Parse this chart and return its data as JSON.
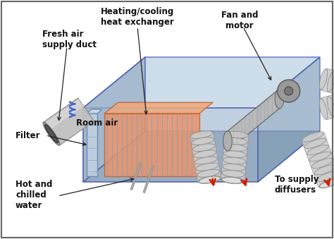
{
  "bg_color": "#f0f0f0",
  "border_color": "#888888",
  "labels": {
    "fresh_air": "Fresh air\nsupply duct",
    "heat_exchanger": "Heating/cooling\nheat exchanger",
    "fan_motor": "Fan and\nmotor",
    "room_air": "Room air",
    "filter": "Filter",
    "hot_chilled": "Hot and\nchilled\nwater",
    "supply_diffusers": "To supply\ndiffusers"
  },
  "housing_color_front": "#8faac8",
  "housing_color_top": "#b8cfe0",
  "housing_color_right": "#7a9ab8",
  "housing_edge": "#4455aa",
  "hx_color": "#e8956e",
  "hx_edge": "#c06030",
  "fan_color": "#aaaaaa",
  "duct_color": "#c8c8c8",
  "duct_edge": "#888888",
  "arrow_red": "#cc2200",
  "arrow_blue": "#4466cc",
  "arrow_black": "#222222",
  "label_fontsize": 8.5,
  "label_color": "#111111",
  "white_bg": "#ffffff"
}
